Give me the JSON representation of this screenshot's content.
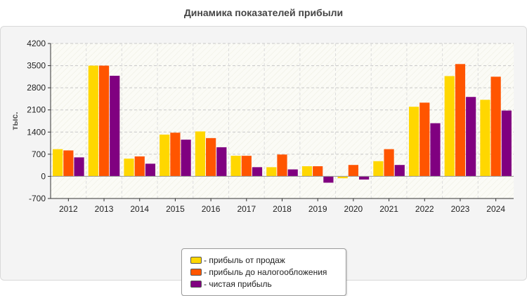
{
  "chart_data": {
    "type": "bar",
    "title": "Динамика показателей прибыли",
    "ylabel": "тыс.",
    "xlabel": "",
    "ylim": [
      -700,
      4200
    ],
    "yticks": [
      4200,
      3500,
      2800,
      2100,
      1400,
      700,
      0,
      -700
    ],
    "grid": true,
    "legend_position": "bottom-center",
    "categories": [
      "2012",
      "2013",
      "2014",
      "2015",
      "2016",
      "2017",
      "2018",
      "2019",
      "2020",
      "2021",
      "2022",
      "2023",
      "2024"
    ],
    "series": [
      {
        "name": "- прибыль от продаж",
        "color": "#ffd700",
        "values": [
          860,
          3500,
          560,
          1320,
          1420,
          650,
          290,
          320,
          -60,
          480,
          2200,
          3170,
          2420
        ]
      },
      {
        "name": "- прибыль до налогообложения",
        "color": "#ff5500",
        "values": [
          820,
          3500,
          630,
          1380,
          1210,
          650,
          690,
          320,
          360,
          860,
          2330,
          3550,
          3150
        ]
      },
      {
        "name": "- чистая прибыль",
        "color": "#800080",
        "values": [
          600,
          3180,
          400,
          1160,
          920,
          290,
          220,
          -200,
          -100,
          360,
          1680,
          2510,
          2080
        ]
      }
    ]
  }
}
